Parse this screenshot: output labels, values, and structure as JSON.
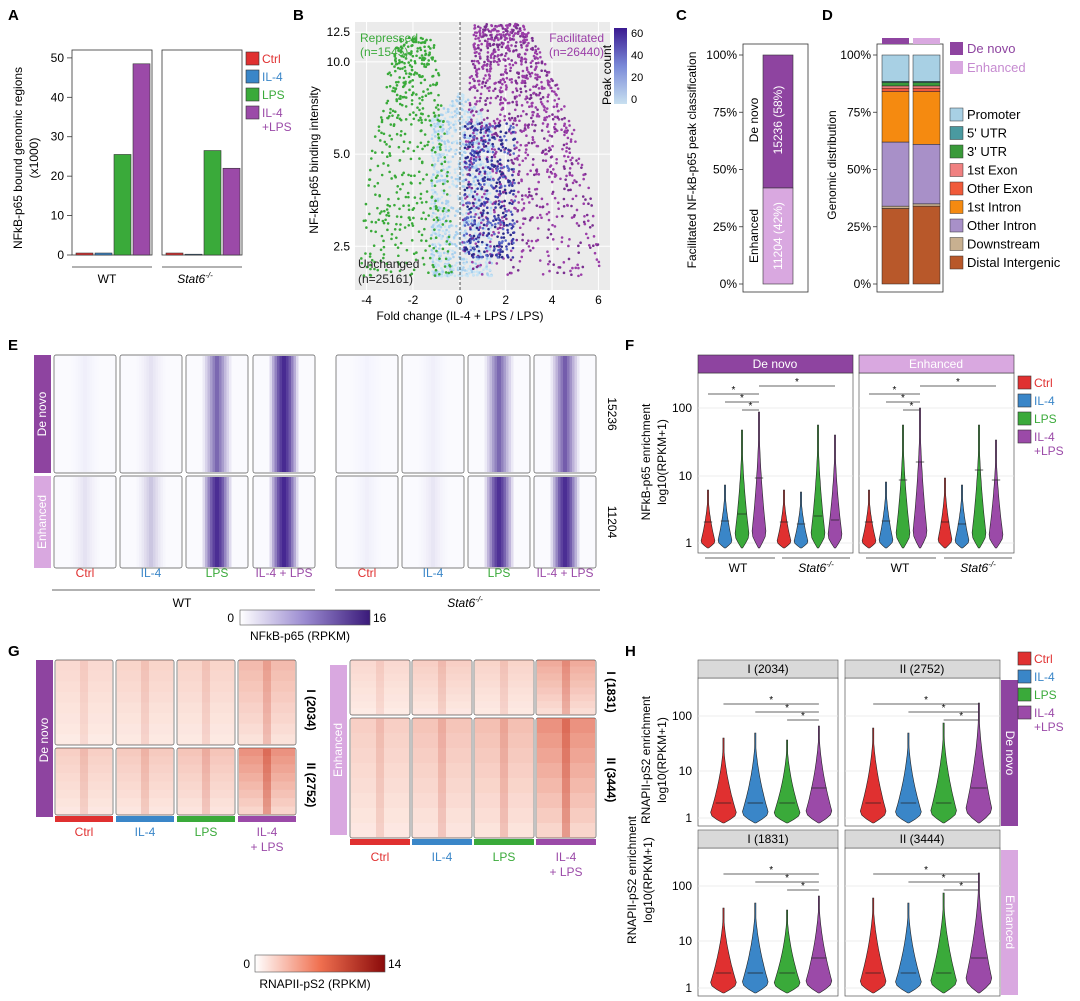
{
  "colors": {
    "ctrl": "#e03030",
    "il4": "#3a86c8",
    "lps": "#3aaa3a",
    "il4lps": "#9b4aa8",
    "denovo": "#8e44a0",
    "enhanced": "#d9a8e0",
    "repressed": "#3aaa3a",
    "facilitated": "#9b3ea8",
    "panel_bg": "#ebebeb",
    "strip_bg": "#d9d9d9"
  },
  "panel_labels": {
    "a": "A",
    "b": "B",
    "c": "C",
    "d": "D",
    "e": "E",
    "f": "F",
    "g": "G",
    "h": "H"
  },
  "panel_a": {
    "ylabel_line1": "NFkB-p65 bound genomic regions",
    "ylabel_line2": "(x1000)",
    "y_ticks": [
      "0",
      "10",
      "20",
      "30",
      "40",
      "50"
    ],
    "groups": [
      "WT",
      "Stat6-/-"
    ],
    "group_main": "Stat6",
    "group_sup": "-/-",
    "legend": [
      "Ctrl",
      "IL-4",
      "LPS",
      "IL-4",
      "+LPS"
    ],
    "chart_data": {
      "type": "bar",
      "categories": [
        "Ctrl",
        "IL-4",
        "LPS",
        "IL-4 +LPS"
      ],
      "series": [
        {
          "name": "WT",
          "values": [
            0.5,
            0.5,
            25.5,
            48.5
          ]
        },
        {
          "name": "Stat6-/-",
          "values": [
            0.5,
            0.2,
            26.5,
            22
          ]
        }
      ],
      "ylim": [
        0,
        52
      ]
    }
  },
  "panel_b": {
    "xlabel": "Fold change (IL-4 + LPS / LPS)",
    "ylabel": "NF-kB-p65 binding intensity",
    "y_ticks": [
      "2.5",
      "5.0",
      "10.0",
      "12.5"
    ],
    "x_ticks": [
      "-4",
      "-2",
      "0",
      "2",
      "4",
      "6"
    ],
    "repressed_label": "Repressed",
    "repressed_n": "(n=1545)",
    "facilitated_label": "Facilitated",
    "facilitated_n": "(n=26440)",
    "unchanged_label": "Unchanged",
    "unchanged_n": "(n=25161)",
    "colorbar_title": "Peak count",
    "colorbar_ticks": [
      "60",
      "40",
      "20",
      "0"
    ],
    "chart_data": {
      "type": "scatter",
      "xlim": [
        -4.5,
        6.5
      ],
      "ylim": [
        1.8,
        13.5
      ],
      "groups": [
        {
          "name": "Repressed",
          "n": 1545
        },
        {
          "name": "Unchanged",
          "n": 25161
        },
        {
          "name": "Facilitated",
          "n": 26440
        }
      ]
    }
  },
  "panel_c": {
    "ylabel": "Facilitated NF-kB-p65 peak classification",
    "y_ticks": [
      "0%",
      "25%",
      "50%",
      "75%",
      "100%"
    ],
    "denovo_label": "De novo",
    "denovo_count": "15236 (58%)",
    "enhanced_label": "Enhanced",
    "enhanced_count": "11204 (42%)",
    "chart_data": {
      "type": "bar",
      "categories": [
        "Facilitated"
      ],
      "series": [
        {
          "name": "De novo",
          "values": [
            58
          ]
        },
        {
          "name": "Enhanced",
          "values": [
            42
          ]
        }
      ]
    }
  },
  "panel_d": {
    "ylabel": "Genomic distribution",
    "y_ticks": [
      "0%",
      "25%",
      "50%",
      "75%",
      "100%"
    ],
    "top_legend": [
      "De novo",
      "Enhanced"
    ],
    "legend": [
      {
        "label": "Promoter",
        "color": "#a8d0e4"
      },
      {
        "label": "5' UTR",
        "color": "#4a9aa0"
      },
      {
        "label": "3' UTR",
        "color": "#3a9a3a"
      },
      {
        "label": "1st Exon",
        "color": "#f08080"
      },
      {
        "label": "Other Exon",
        "color": "#f05a3a"
      },
      {
        "label": "1st Intron",
        "color": "#f58a10"
      },
      {
        "label": "Other Intron",
        "color": "#a890c8"
      },
      {
        "label": "Downstream",
        "color": "#c8b090"
      },
      {
        "label": "Distal Intergenic",
        "color": "#b8582a"
      }
    ],
    "chart_data": {
      "type": "bar",
      "categories": [
        "De novo",
        "Enhanced"
      ],
      "series": [
        {
          "name": "Distal Intergenic",
          "values": [
            33,
            34
          ]
        },
        {
          "name": "Downstream",
          "values": [
            1,
            1
          ]
        },
        {
          "name": "Other Intron",
          "values": [
            28,
            26
          ]
        },
        {
          "name": "1st Intron",
          "values": [
            22,
            23
          ]
        },
        {
          "name": "Other Exon",
          "values": [
            1.5,
            1.5
          ]
        },
        {
          "name": "1st Exon",
          "values": [
            1,
            1
          ]
        },
        {
          "name": "3' UTR",
          "values": [
            1.5,
            1.5
          ]
        },
        {
          "name": "5' UTR",
          "values": [
            0.5,
            0.5
          ]
        },
        {
          "name": "Promoter",
          "values": [
            11.5,
            11.5
          ]
        }
      ]
    }
  },
  "panel_e": {
    "row_labels": [
      "De novo",
      "Enhanced"
    ],
    "counts": [
      "15236",
      "11204"
    ],
    "col_labels": [
      "Ctrl",
      "IL-4",
      "LPS",
      "IL-4 + LPS"
    ],
    "group_wt": "WT",
    "group_stat6": "Stat6",
    "group_sup": "-/-",
    "scale_min": "0",
    "scale_max": "16",
    "scale_title": "NFkB-p65 (RPKM)"
  },
  "panel_f": {
    "strips": [
      "De novo",
      "Enhanced"
    ],
    "ylabel_line1": "NFkB-p65 enrichment",
    "ylabel_line2": "log10(RPKM+1)",
    "y_ticks": [
      "100",
      "10",
      "1"
    ],
    "groups": [
      "WT",
      "Stat6-/-"
    ],
    "legend": [
      "Ctrl",
      "IL-4",
      "LPS",
      "IL-4",
      "+LPS"
    ],
    "sig": "*"
  },
  "panel_g": {
    "denovo_label": "De novo",
    "enhanced_label": "Enhanced",
    "clusters_left": [
      "I (2034)",
      "II (2752)"
    ],
    "clusters_right": [
      "I (1831)",
      "II (3444)"
    ],
    "col_labels": [
      "Ctrl",
      "IL-4",
      "LPS",
      "IL-4",
      "+ LPS"
    ],
    "scale_min": "0",
    "scale_max": "14",
    "scale_title": "RNAPII-pS2 (RPKM)"
  },
  "panel_h": {
    "strips": [
      "I (2034)",
      "II (2752)",
      "I (1831)",
      "II (3444)"
    ],
    "row_strips": [
      "De novo",
      "Enhanced"
    ],
    "ylabel_line1": "RNAPII-pS2 enrichment",
    "ylabel_line2": "log10(RPKM+1)",
    "y_ticks": [
      "100",
      "10",
      "1"
    ],
    "legend": [
      "Ctrl",
      "IL-4",
      "LPS",
      "IL-4",
      "+LPS"
    ],
    "sig": "*"
  }
}
